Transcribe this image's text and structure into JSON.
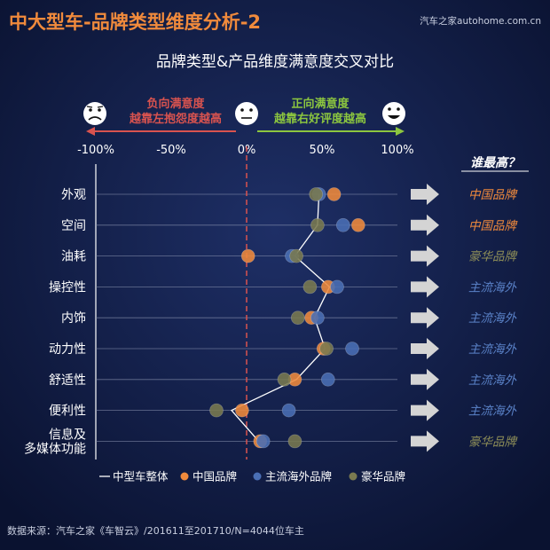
{
  "header": {
    "title": "中大型车-品牌类型维度分析-2",
    "watermark": "汽车之家autohome.com.cn"
  },
  "chart_data": {
    "type": "scatter",
    "title": "品牌类型&产品维度满意度交叉对比",
    "x_axis": {
      "range": [
        -100,
        100
      ],
      "ticks": [
        "-100%",
        "-50%",
        "0%",
        "50%",
        "100%"
      ],
      "tick_values": [
        -100,
        -50,
        0,
        50,
        100
      ]
    },
    "banner": {
      "negative_title": "负向满意度",
      "negative_sub": "越靠左抱怨度越高",
      "positive_title": "正向满意度",
      "positive_sub": "越靠右好评度越高"
    },
    "categories": [
      "外观",
      "空间",
      "油耗",
      "操控性",
      "内饰",
      "动力性",
      "舒适性",
      "便利性",
      "信息及多媒体功能"
    ],
    "category_lines": [
      [
        "外观"
      ],
      [
        "空间"
      ],
      [
        "油耗"
      ],
      [
        "操控性"
      ],
      [
        "内饰"
      ],
      [
        "动力性"
      ],
      [
        "舒适性"
      ],
      [
        "便利性"
      ],
      [
        "信息及",
        "多媒体功能"
      ]
    ],
    "series": [
      {
        "name": "中型车整体",
        "style": "line",
        "color": "#ffffff",
        "values": [
          48,
          47,
          32,
          55,
          45,
          52,
          33,
          -10,
          8
        ]
      },
      {
        "name": "中国品牌",
        "style": "dot",
        "color": "#f08a3c",
        "values": [
          58,
          74,
          1,
          54,
          43,
          51,
          32,
          -3,
          9
        ]
      },
      {
        "name": "主流海外品牌",
        "style": "dot",
        "color": "#4a6fb5",
        "values": [
          48,
          64,
          30,
          60,
          47,
          70,
          54,
          28,
          11
        ]
      },
      {
        "name": "豪华品牌",
        "style": "dot",
        "color": "#7a7a50",
        "values": [
          46,
          47,
          33,
          42,
          34,
          53,
          25,
          -20,
          32
        ]
      }
    ],
    "winner_header": "谁最高？",
    "winners": [
      {
        "text": "中国品牌",
        "color": "#f08a3c"
      },
      {
        "text": "中国品牌",
        "color": "#f08a3c"
      },
      {
        "text": "豪华品牌",
        "color": "#8f8f58"
      },
      {
        "text": "主流海外",
        "color": "#5a82c8"
      },
      {
        "text": "主流海外",
        "color": "#5a82c8"
      },
      {
        "text": "主流海外",
        "color": "#5a82c8"
      },
      {
        "text": "主流海外",
        "color": "#5a82c8"
      },
      {
        "text": "主流海外",
        "color": "#5a82c8"
      },
      {
        "text": "豪华品牌",
        "color": "#8f8f58"
      }
    ]
  },
  "footer": {
    "source": "数据来源：汽车之家《车智云》/201611至201710/N=4044位车主"
  },
  "colors": {
    "background": "#0c1638",
    "title_accent": "#f08a3c",
    "negative": "#d9534f",
    "positive": "#8cc63f",
    "zero_line": "#d9534f",
    "grid": "#8a93b0"
  }
}
